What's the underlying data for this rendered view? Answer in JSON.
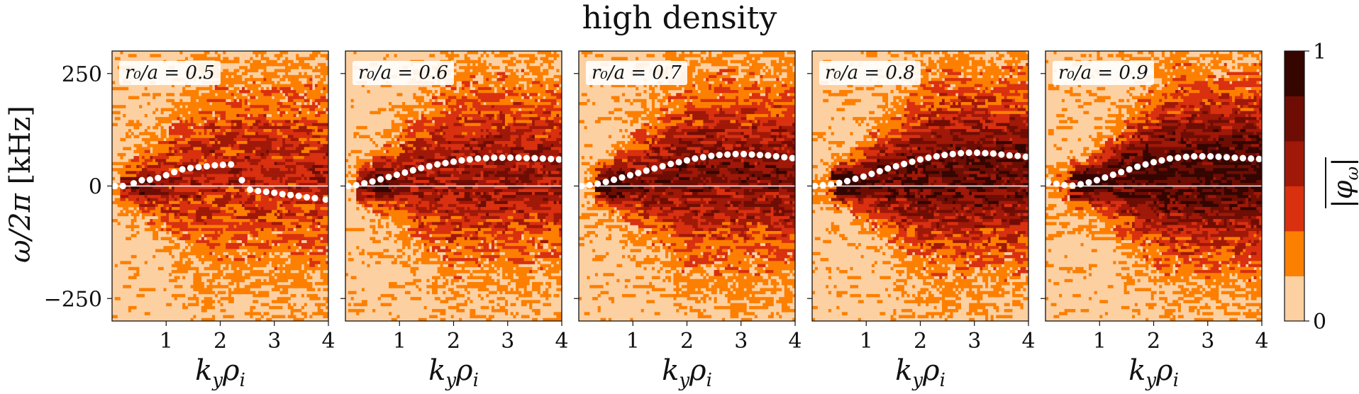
{
  "chart_data": {
    "type": "heatmap",
    "title": "high density",
    "ylabel": "ω/2π [kHz]",
    "xlabel": "k_y ρ_i",
    "xlim": [
      0,
      4
    ],
    "ylim": [
      -300,
      300
    ],
    "x_ticks": [
      "1",
      "2",
      "3",
      "4"
    ],
    "y_ticks": [
      "250",
      "0",
      "−250"
    ],
    "colorbar": {
      "label": "|φ_ω|",
      "ticks": [
        "1",
        "0"
      ],
      "range": [
        0,
        1
      ],
      "levels": [
        "#fdd0a2",
        "#fd7f00",
        "#d93010",
        "#a01808",
        "#6e0d04",
        "#350500"
      ]
    },
    "panels": [
      {
        "label": "r₀/a = 0.5",
        "peak": {
          "x": [
            0.05,
            0.2,
            0.4,
            0.55,
            0.7,
            0.85,
            1.0,
            1.15,
            1.3,
            1.45,
            1.6,
            1.75,
            1.9,
            2.05,
            2.2,
            2.4,
            2.55,
            2.7,
            2.85,
            3.0,
            3.15,
            3.3,
            3.45,
            3.6,
            3.75,
            3.95
          ],
          "y": [
            0,
            0,
            6,
            13,
            14,
            18,
            24,
            31,
            37,
            40,
            42,
            44,
            46,
            47,
            48,
            13,
            -8,
            -11,
            -13,
            -15,
            -18,
            -20,
            -22,
            -25,
            -27,
            -30
          ]
        }
      },
      {
        "label": "r₀/a = 0.6",
        "peak": {
          "x": [
            0.05,
            0.2,
            0.35,
            0.5,
            0.65,
            0.8,
            0.95,
            1.1,
            1.25,
            1.4,
            1.55,
            1.7,
            1.85,
            2.0,
            2.15,
            2.3,
            2.45,
            2.6,
            2.75,
            2.9,
            3.05,
            3.2,
            3.35,
            3.5,
            3.65,
            3.8,
            3.95
          ],
          "y": [
            0,
            2,
            6,
            10,
            15,
            20,
            25,
            30,
            35,
            40,
            44,
            48,
            51,
            54,
            57,
            59,
            61,
            62,
            63,
            63,
            63,
            63,
            62,
            62,
            61,
            60,
            59
          ]
        }
      },
      {
        "label": "r₀/a = 0.7",
        "peak": {
          "x": [
            0.05,
            0.2,
            0.35,
            0.5,
            0.65,
            0.8,
            0.95,
            1.1,
            1.25,
            1.4,
            1.55,
            1.7,
            1.85,
            2.0,
            2.15,
            2.3,
            2.45,
            2.6,
            2.75,
            2.9,
            3.05,
            3.2,
            3.35,
            3.5,
            3.65,
            3.8,
            3.95
          ],
          "y": [
            0,
            2,
            5,
            9,
            14,
            19,
            24,
            29,
            34,
            39,
            44,
            49,
            53,
            57,
            61,
            64,
            67,
            69,
            70,
            71,
            71,
            70,
            69,
            68,
            66,
            64,
            62
          ]
        }
      },
      {
        "label": "r₀/a = 0.8",
        "peak": {
          "x": [
            0.05,
            0.2,
            0.35,
            0.5,
            0.65,
            0.8,
            0.95,
            1.1,
            1.25,
            1.4,
            1.55,
            1.7,
            1.85,
            2.0,
            2.15,
            2.3,
            2.45,
            2.6,
            2.75,
            2.9,
            3.05,
            3.2,
            3.35,
            3.5,
            3.65,
            3.8,
            3.95
          ],
          "y": [
            0,
            2,
            4,
            7,
            11,
            16,
            21,
            27,
            33,
            39,
            44,
            49,
            54,
            59,
            63,
            66,
            69,
            71,
            73,
            74,
            74,
            73,
            72,
            70,
            68,
            67,
            65
          ]
        }
      },
      {
        "label": "r₀/a = 0.9",
        "peak": {
          "x": [
            0.05,
            0.2,
            0.35,
            0.5,
            0.65,
            0.8,
            0.95,
            1.1,
            1.25,
            1.4,
            1.55,
            1.7,
            1.85,
            2.0,
            2.15,
            2.3,
            2.45,
            2.6,
            2.75,
            2.9,
            3.05,
            3.2,
            3.35,
            3.5,
            3.65,
            3.8,
            3.95
          ],
          "y": [
            8,
            5,
            2,
            1,
            4,
            8,
            13,
            19,
            25,
            31,
            37,
            43,
            48,
            53,
            57,
            61,
            63,
            65,
            66,
            66,
            66,
            65,
            64,
            63,
            62,
            61,
            60
          ]
        }
      }
    ]
  }
}
